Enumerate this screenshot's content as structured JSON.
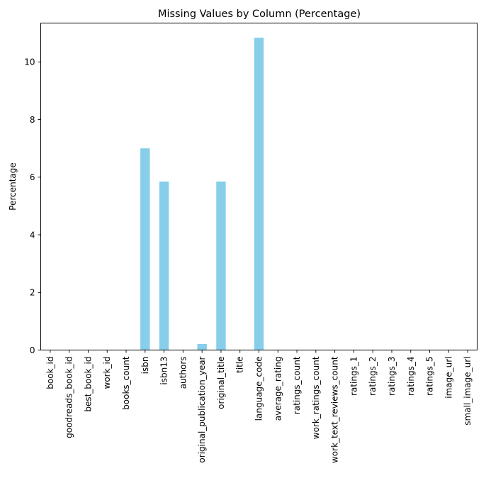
{
  "chart_data": {
    "type": "bar",
    "title": "Missing Values by Column (Percentage)",
    "xlabel": "",
    "ylabel": "Percentage",
    "ylim": [
      0,
      11.35
    ],
    "yticks": [
      0,
      2,
      4,
      6,
      8,
      10
    ],
    "grid": false,
    "categories": [
      "book_id",
      "goodreads_book_id",
      "best_book_id",
      "work_id",
      "books_count",
      "isbn",
      "isbn13",
      "authors",
      "original_publication_year",
      "original_title",
      "title",
      "language_code",
      "average_rating",
      "ratings_count",
      "work_ratings_count",
      "work_text_reviews_count",
      "ratings_1",
      "ratings_2",
      "ratings_3",
      "ratings_4",
      "ratings_5",
      "image_url",
      "small_image_url"
    ],
    "values": [
      0,
      0,
      0,
      0,
      0,
      7.0,
      5.85,
      0,
      0.21,
      5.85,
      0,
      10.84,
      0,
      0,
      0,
      0,
      0,
      0,
      0,
      0,
      0,
      0,
      0
    ],
    "bar_color": "#87ceeb"
  }
}
